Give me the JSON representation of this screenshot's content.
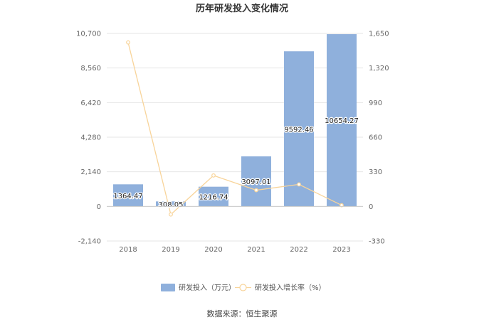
{
  "chart_data": {
    "type": "bar",
    "title": "历年研发投入变化情况",
    "categories": [
      "2018",
      "2019",
      "2020",
      "2021",
      "2022",
      "2023"
    ],
    "series": [
      {
        "name": "研发投入（万元）",
        "type": "bar",
        "axis": "left",
        "color": "#8fb0dc",
        "values": [
          1364.47,
          308.05,
          1216.74,
          3097.01,
          9592.46,
          10654.27
        ],
        "labels": [
          "1364.47",
          "308.05",
          "1216.74",
          "3097.01",
          "9592.46",
          "10654.27"
        ]
      },
      {
        "name": "研发投入增长率（%）",
        "type": "line",
        "axis": "right",
        "color": "#f8d49a",
        "values": [
          1564,
          -77.4,
          295,
          154.5,
          209.7,
          11.07
        ]
      }
    ],
    "left_axis": {
      "ylim": [
        -2140,
        10700
      ],
      "ticks": [
        -2140,
        0,
        2140,
        4280,
        6420,
        8560,
        10700
      ],
      "tick_labels": [
        "-2,140",
        "0",
        "2,140",
        "4,280",
        "6,420",
        "8,560",
        "10,700"
      ]
    },
    "right_axis": {
      "ylim": [
        -330,
        1650
      ],
      "ticks": [
        -330,
        0,
        330,
        660,
        990,
        1320,
        1650
      ],
      "tick_labels": [
        "-330",
        "0",
        "330",
        "660",
        "990",
        "1,320",
        "1,650"
      ]
    },
    "grid": true,
    "legend_position": "bottom",
    "source": "数据来源：恒生聚源"
  }
}
